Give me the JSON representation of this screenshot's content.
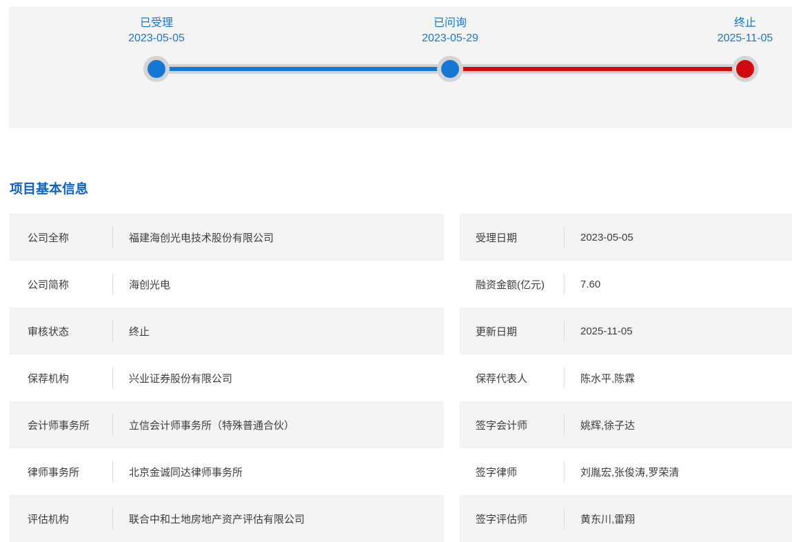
{
  "colors": {
    "accent_blue": "#1577d4",
    "accent_red": "#d20a10",
    "title_blue": "#0b63c8",
    "track_gray": "#d4d4d4",
    "row_gray": "#f4f3f1"
  },
  "timeline": {
    "milestones": [
      {
        "stage": "已受理",
        "date": "2023-05-05",
        "dot_color": "#1577d4"
      },
      {
        "stage": "已问询",
        "date": "2023-05-29",
        "dot_color": "#1577d4"
      },
      {
        "stage": "终止",
        "date": "2025-11-05",
        "dot_color": "#d20a10"
      }
    ],
    "segments": [
      {
        "from": "已受理",
        "to": "已问询",
        "color": "#1577d4"
      },
      {
        "from": "已问询",
        "to": "终止",
        "color": "#d20a10"
      }
    ]
  },
  "section": {
    "title": "项目基本信息"
  },
  "info": {
    "left_rows": [
      {
        "label": "公司全称",
        "value": "福建海创光电技术股份有限公司"
      },
      {
        "label": "公司简称",
        "value": "海创光电"
      },
      {
        "label": "审核状态",
        "value": "终止"
      },
      {
        "label": "保荐机构",
        "value": "兴业证券股份有限公司"
      },
      {
        "label": "会计师事务所",
        "value": "立信会计师事务所（特殊普通合伙）"
      },
      {
        "label": "律师事务所",
        "value": "北京金诚同达律师事务所"
      },
      {
        "label": "评估机构",
        "value": "联合中和土地房地产资产评估有限公司"
      }
    ],
    "right_rows": [
      {
        "label": "受理日期",
        "value": "2023-05-05"
      },
      {
        "label": "融资金额(亿元)",
        "value": "7.60"
      },
      {
        "label": "更新日期",
        "value": "2025-11-05"
      },
      {
        "label": "保荐代表人",
        "value": "陈水平,陈霖"
      },
      {
        "label": "签字会计师",
        "value": "姚辉,徐子达"
      },
      {
        "label": "签字律师",
        "value": "刘胤宏,张俊涛,罗荣清"
      },
      {
        "label": "签字评估师",
        "value": "黄东川,雷翔"
      }
    ]
  }
}
